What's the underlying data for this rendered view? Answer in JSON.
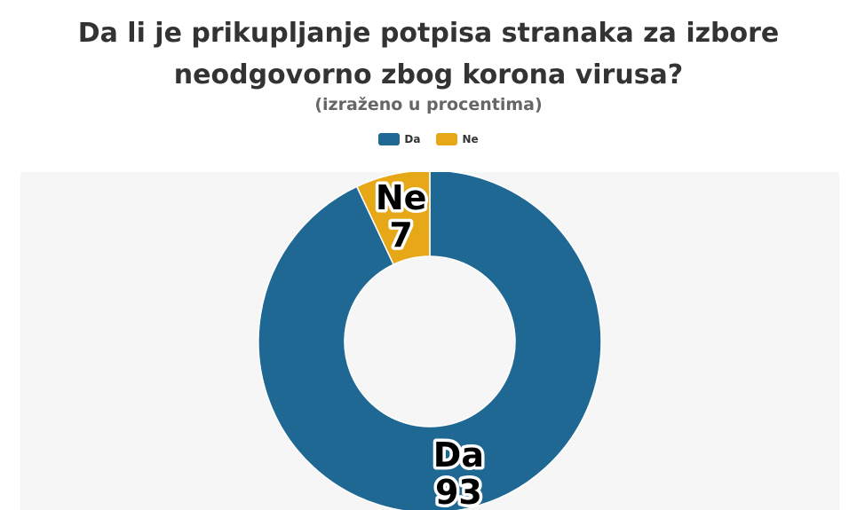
{
  "chart_data": {
    "type": "pie",
    "donut": true,
    "title_lines": [
      "Da li je prikupljanje potpisa stranaka za izbore",
      "neodgovorno zbog korona virusa?"
    ],
    "subtitle": "(izraženo u procentima)",
    "legend_position": "top-center",
    "slices": [
      {
        "label": "Da",
        "value": 93,
        "color": "#1f6893"
      },
      {
        "label": "Ne",
        "value": 7,
        "color": "#e6a817"
      }
    ]
  }
}
